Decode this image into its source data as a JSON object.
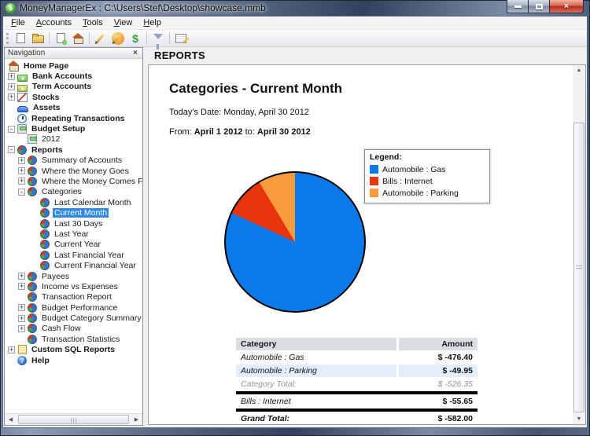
{
  "window": {
    "title": "MoneyManagerEx : C:\\Users\\Stef\\Desktop\\showcase.mmb",
    "app_icon": "money-manager-dollar-icon",
    "controls": [
      {
        "name": "minimize",
        "icon": "minimize-icon"
      },
      {
        "name": "maximize",
        "icon": "maximize-icon"
      },
      {
        "name": "close",
        "icon": "close-icon"
      }
    ]
  },
  "menu_bar": {
    "items": [
      {
        "label": "File"
      },
      {
        "label": "Accounts"
      },
      {
        "label": "Tools"
      },
      {
        "label": "View"
      },
      {
        "label": "Help"
      }
    ]
  },
  "toolbar": {
    "buttons": [
      {
        "icon": "new-database-icon"
      },
      {
        "icon": "open-database-icon"
      },
      {
        "icon": "new-account-icon"
      },
      {
        "icon": "home-page-icon"
      },
      {
        "icon": "organize-categories-icon"
      },
      {
        "icon": "organize-payees-icon"
      },
      {
        "icon": "currency-icon"
      },
      {
        "icon": "transaction-filter-icon"
      },
      {
        "icon": "report-manager-icon"
      }
    ]
  },
  "navigation": {
    "header": "Navigation",
    "close_icon": "close-icon",
    "items": [
      {
        "label": "Home Page",
        "depth": 0,
        "icon": "home-icon",
        "expander": "none",
        "bold": true,
        "selected": false
      },
      {
        "label": "Bank Accounts",
        "depth": 0,
        "icon": "money-icon",
        "expander": "plus",
        "bold": true,
        "selected": false
      },
      {
        "label": "Term Accounts",
        "depth": 0,
        "icon": "money-icon",
        "expander": "plus",
        "bold": true,
        "selected": false
      },
      {
        "label": "Stocks",
        "depth": 0,
        "icon": "stocks-icon",
        "expander": "plus",
        "bold": true,
        "selected": false
      },
      {
        "label": "Assets",
        "depth": 0,
        "icon": "car-icon",
        "expander": "none",
        "bold": true,
        "selected": false
      },
      {
        "label": "Repeating Transactions",
        "depth": 0,
        "icon": "clock-icon",
        "expander": "none",
        "bold": true,
        "selected": false
      },
      {
        "label": "Budget Setup",
        "depth": 0,
        "icon": "calculator-icon",
        "expander": "minus",
        "bold": true,
        "selected": false
      },
      {
        "label": "2012",
        "depth": 1,
        "icon": "calculator-icon",
        "expander": "none",
        "bold": false,
        "selected": false
      },
      {
        "label": "Reports",
        "depth": 0,
        "icon": "pie-chart-icon",
        "expander": "minus",
        "bold": true,
        "selected": false
      },
      {
        "label": "Summary of Accounts",
        "depth": 1,
        "icon": "pie-chart-icon",
        "expander": "plus",
        "bold": false,
        "selected": false
      },
      {
        "label": "Where the Money Goes",
        "depth": 1,
        "icon": "pie-chart-icon",
        "expander": "plus",
        "bold": false,
        "selected": false
      },
      {
        "label": "Where the Money Comes From",
        "depth": 1,
        "icon": "pie-chart-icon",
        "expander": "plus",
        "bold": false,
        "selected": false
      },
      {
        "label": "Categories",
        "depth": 1,
        "icon": "pie-chart-icon",
        "expander": "minus",
        "bold": false,
        "selected": false
      },
      {
        "label": "Last Calendar Month",
        "depth": 2,
        "icon": "pie-chart-icon",
        "expander": "none",
        "bold": false,
        "selected": false
      },
      {
        "label": "Current Month",
        "depth": 2,
        "icon": "pie-chart-icon",
        "expander": "none",
        "bold": false,
        "selected": true
      },
      {
        "label": "Last 30 Days",
        "depth": 2,
        "icon": "pie-chart-icon",
        "expander": "none",
        "bold": false,
        "selected": false
      },
      {
        "label": "Last Year",
        "depth": 2,
        "icon": "pie-chart-icon",
        "expander": "none",
        "bold": false,
        "selected": false
      },
      {
        "label": "Current Year",
        "depth": 2,
        "icon": "pie-chart-icon",
        "expander": "none",
        "bold": false,
        "selected": false
      },
      {
        "label": "Last Financial Year",
        "depth": 2,
        "icon": "pie-chart-icon",
        "expander": "none",
        "bold": false,
        "selected": false
      },
      {
        "label": "Current Financial Year",
        "depth": 2,
        "icon": "pie-chart-icon",
        "expander": "none",
        "bold": false,
        "selected": false
      },
      {
        "label": "Payees",
        "depth": 1,
        "icon": "pie-chart-icon",
        "expander": "plus",
        "bold": false,
        "selected": false
      },
      {
        "label": "Income vs Expenses",
        "depth": 1,
        "icon": "pie-chart-icon",
        "expander": "plus",
        "bold": false,
        "selected": false
      },
      {
        "label": "Transaction Report",
        "depth": 1,
        "icon": "pie-chart-icon",
        "expander": "none",
        "bold": false,
        "selected": false
      },
      {
        "label": "Budget Performance",
        "depth": 1,
        "icon": "pie-chart-icon",
        "expander": "plus",
        "bold": false,
        "selected": false
      },
      {
        "label": "Budget Category Summary",
        "depth": 1,
        "icon": "pie-chart-icon",
        "expander": "plus",
        "bold": false,
        "selected": false
      },
      {
        "label": "Cash Flow",
        "depth": 1,
        "icon": "pie-chart-icon",
        "expander": "plus",
        "bold": false,
        "selected": false
      },
      {
        "label": "Transaction Statistics",
        "depth": 1,
        "icon": "pie-chart-icon",
        "expander": "none",
        "bold": false,
        "selected": false
      },
      {
        "label": "Custom SQL Reports",
        "depth": 0,
        "icon": "sql-report-icon",
        "expander": "plus",
        "bold": true,
        "selected": false
      },
      {
        "label": "Help",
        "depth": 0,
        "icon": "help-icon",
        "expander": "none",
        "bold": true,
        "selected": false
      }
    ]
  },
  "report": {
    "header": "REPORTS",
    "title": "Categories - Current Month",
    "today_label": "Today's Date:",
    "today_value": "Monday, April 30 2012",
    "from_label": "From:",
    "from_date": "April 1 2012",
    "to_label": "to:",
    "to_date": "April 30 2012",
    "legend": {
      "title": "Legend:",
      "entries": [
        {
          "label": "Automobile : Gas",
          "color": "#0b79e8"
        },
        {
          "label": "Bills : Internet",
          "color": "#e8340c"
        },
        {
          "label": "Automobile : Parking",
          "color": "#f79b3d"
        }
      ]
    },
    "table": {
      "headers": {
        "category": "Category",
        "amount": "Amount"
      },
      "rows": [
        {
          "category": "Automobile : Gas",
          "amount": "$ -476.40"
        },
        {
          "category": "Automobile : Parking",
          "amount": "$ -49.95"
        },
        {
          "category": "Category Total:",
          "amount": "$ -526.35"
        },
        {
          "category": "Bills : Internet",
          "amount": "$ -55.65"
        },
        {
          "category": "Grand Total:",
          "amount": "$ -582.00"
        }
      ]
    }
  },
  "chart_data": {
    "type": "pie",
    "title": "Categories - Current Month",
    "labels": [
      "Automobile : Gas",
      "Bills : Internet",
      "Automobile : Parking"
    ],
    "values": [
      -476.4,
      -55.65,
      -49.95
    ],
    "percentages": [
      81.9,
      9.6,
      8.6
    ],
    "colors": [
      "#0b79e8",
      "#e8340c",
      "#f79b3d"
    ],
    "start_angle_deg": 0,
    "direction": "clockwise",
    "legend_position": "top-right"
  }
}
